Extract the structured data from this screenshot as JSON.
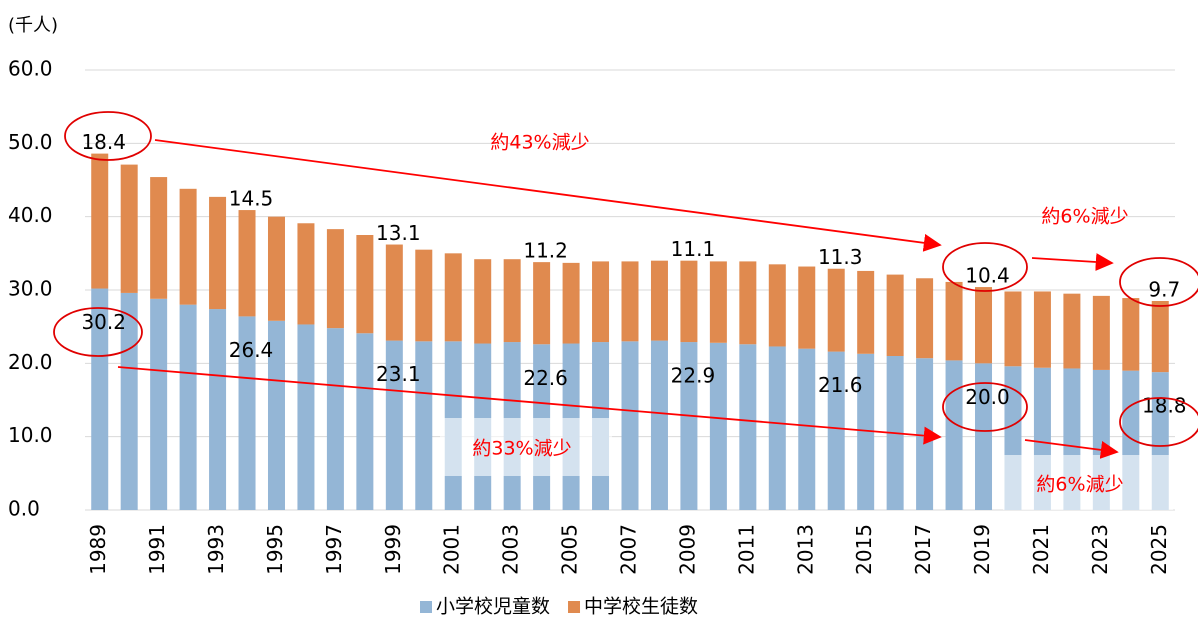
{
  "chart_data": {
    "type": "stacked_bar",
    "y_axis_label": "(千人)",
    "categories": [
      "1989",
      "1990",
      "1991",
      "1992",
      "1993",
      "1994",
      "1995",
      "1996",
      "1997",
      "1998",
      "1999",
      "2000",
      "2001",
      "2002",
      "2003",
      "2004",
      "2005",
      "2006",
      "2007",
      "2008",
      "2009",
      "2010",
      "2011",
      "2012",
      "2013",
      "2014",
      "2015",
      "2016",
      "2017",
      "2018",
      "2019",
      "2020",
      "2021",
      "2022",
      "2023",
      "2024",
      "2025"
    ],
    "xtick_labels": [
      "1989",
      null,
      "1991",
      null,
      "1993",
      null,
      "1995",
      null,
      "1997",
      null,
      "1999",
      null,
      "2001",
      null,
      "2003",
      null,
      "2005",
      null,
      "2007",
      null,
      "2009",
      null,
      "2011",
      null,
      "2013",
      null,
      "2015",
      null,
      "2017",
      null,
      "2019",
      null,
      "2021",
      null,
      "2023",
      null,
      "2025"
    ],
    "series": [
      {
        "name": "小学校児童数",
        "color": "#94b6d6",
        "values": [
          30.2,
          29.6,
          28.8,
          28.0,
          27.4,
          26.4,
          25.8,
          25.3,
          24.8,
          24.1,
          23.1,
          23.0,
          23.0,
          22.7,
          22.9,
          22.6,
          22.7,
          22.9,
          23.0,
          23.1,
          22.9,
          22.8,
          22.6,
          22.3,
          22.0,
          21.6,
          21.3,
          21.0,
          20.7,
          20.4,
          20.0,
          19.6,
          19.4,
          19.3,
          19.1,
          19.0,
          18.8
        ],
        "value_labels": [
          "30.2",
          null,
          null,
          null,
          null,
          "26.4",
          null,
          null,
          null,
          null,
          "23.1",
          null,
          null,
          null,
          null,
          "22.6",
          null,
          null,
          null,
          null,
          "22.9",
          null,
          null,
          null,
          null,
          "21.6",
          null,
          null,
          null,
          null,
          "20.0",
          null,
          null,
          null,
          null,
          null,
          "18.8"
        ]
      },
      {
        "name": "中学校生徒数",
        "color": "#e08a4f",
        "values": [
          18.4,
          17.5,
          16.6,
          15.8,
          15.3,
          14.5,
          14.2,
          13.8,
          13.5,
          13.4,
          13.1,
          12.5,
          12.0,
          11.5,
          11.3,
          11.2,
          11.0,
          11.0,
          10.9,
          10.9,
          11.1,
          11.1,
          11.3,
          11.2,
          11.2,
          11.3,
          11.3,
          11.1,
          10.9,
          10.7,
          10.4,
          10.2,
          10.4,
          10.2,
          10.1,
          9.9,
          9.7
        ],
        "value_labels": [
          "18.4",
          null,
          null,
          null,
          null,
          "14.5",
          null,
          null,
          null,
          null,
          "13.1",
          null,
          null,
          null,
          null,
          "11.2",
          null,
          null,
          null,
          null,
          "11.1",
          null,
          null,
          null,
          null,
          "11.3",
          null,
          null,
          null,
          null,
          "10.4",
          null,
          null,
          null,
          null,
          null,
          "9.7"
        ]
      }
    ],
    "ylim": [
      0,
      60
    ],
    "yticks": [
      {
        "value": 0,
        "label": "0.0"
      },
      {
        "value": 10,
        "label": "10.0"
      },
      {
        "value": 20,
        "label": "20.0"
      },
      {
        "value": 30,
        "label": "30.0"
      },
      {
        "value": 40,
        "label": "40.0"
      },
      {
        "value": 50,
        "label": "50.0"
      },
      {
        "value": 60,
        "label": "60.0"
      }
    ],
    "grid": true,
    "legend": "bottom",
    "annotations": [
      "約43%減少",
      "約6%減少",
      "約33%減少",
      "約6%減少"
    ]
  }
}
